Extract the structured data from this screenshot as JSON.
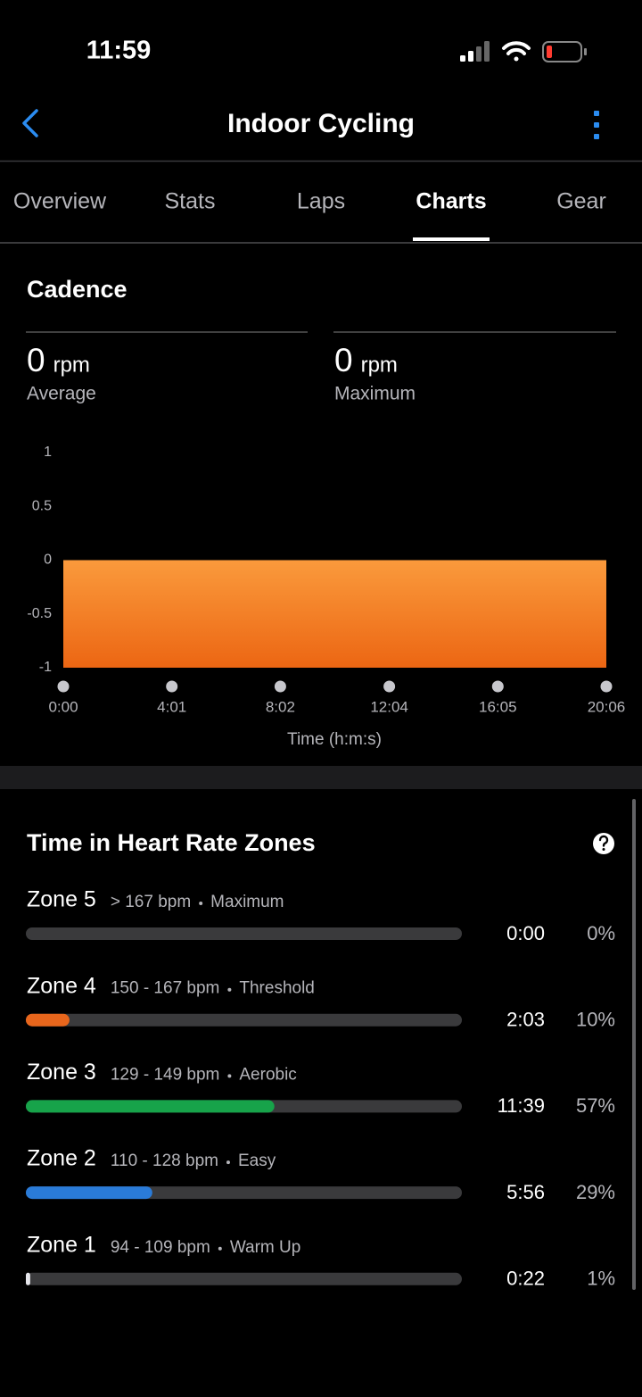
{
  "status_bar": {
    "time": "11:59"
  },
  "nav": {
    "title": "Indoor Cycling"
  },
  "tabs": [
    "Overview",
    "Stats",
    "Laps",
    "Charts",
    "Gear"
  ],
  "cadence": {
    "title": "Cadence",
    "stats": [
      {
        "value": 0,
        "unit": "rpm",
        "label": "Average"
      },
      {
        "value": 0,
        "unit": "rpm",
        "label": "Maximum"
      }
    ]
  },
  "zones_title": "Time in Heart Rate Zones",
  "chart_data": [
    {
      "type": "area",
      "x": [
        0,
        1206
      ],
      "values": [
        0,
        0
      ],
      "color": "#fa9a3c",
      "xlim": [
        0,
        1206
      ],
      "xticks": [
        {
          "value": 0,
          "label": "0:00"
        },
        {
          "value": 241,
          "label": "4:01"
        },
        {
          "value": 482,
          "label": "8:02"
        },
        {
          "value": 724,
          "label": "12:04"
        },
        {
          "value": 965,
          "label": "16:05"
        },
        {
          "value": 1206,
          "label": "20:06"
        }
      ],
      "ylim": [
        -1,
        1
      ],
      "yticks": [
        1,
        0.5,
        0,
        -0.5,
        -1
      ],
      "xlabel": "Time (h:m:s)"
    },
    {
      "type": "hbar",
      "categories": [
        "Zone 5",
        "Zone 4",
        "Zone 3",
        "Zone 2",
        "Zone 1"
      ],
      "ranges": [
        "> 167 bpm",
        "150 - 167 bpm",
        "129 - 149 bpm",
        "110 - 128 bpm",
        "94 - 109 bpm"
      ],
      "descriptions": [
        "Maximum",
        "Threshold",
        "Aerobic",
        "Easy",
        "Warm Up"
      ],
      "times": [
        "0:00",
        "2:03",
        "11:39",
        "5:56",
        "0:22"
      ],
      "values": [
        0,
        10,
        57,
        29,
        1
      ],
      "value_labels": [
        "0%",
        "10%",
        "57%",
        "29%",
        "1%"
      ],
      "colors": [
        "#8e8e93",
        "#e8661c",
        "#17a34a",
        "#2a7bd8",
        "#e5e5ea"
      ],
      "xlim": [
        0,
        100
      ]
    }
  ]
}
